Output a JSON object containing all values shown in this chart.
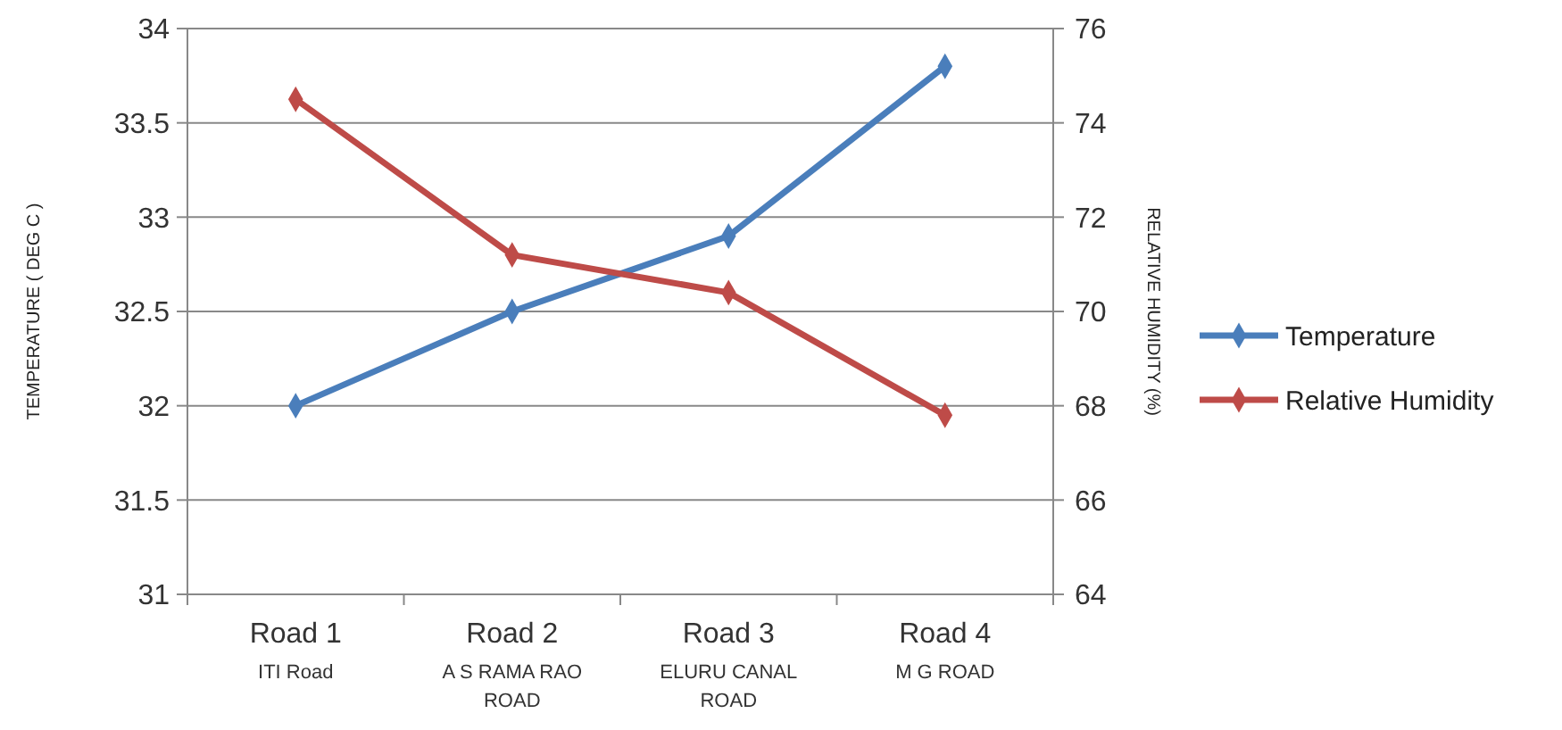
{
  "chart_data": {
    "type": "line",
    "categories": [
      "Road 1\nITI Road",
      "Road 2\nA S RAMA RAO\nROAD",
      "Road 3\nELURU CANAL\nROAD",
      "Road 4\nM G ROAD"
    ],
    "ylabel": "TEMPERATURE ( DEG C )",
    "y2label": "RELATIVE HUMIDITY (%)",
    "ylim": [
      31,
      34
    ],
    "yticks": [
      31,
      31.5,
      32,
      32.5,
      33,
      33.5,
      34
    ],
    "y2lim": [
      64,
      76
    ],
    "y2ticks": [
      64,
      66,
      68,
      70,
      72,
      74,
      76
    ],
    "grid": "y",
    "legend": "right",
    "marker": "diamond",
    "line_style": "solid",
    "series": [
      {
        "name": "Temperature",
        "color": "#4a7ebb",
        "values": [
          32,
          32.5,
          32.9,
          33.8
        ]
      },
      {
        "name": "Relative Humidity",
        "color": "#be4b48",
        "values": [
          74.5,
          71.2,
          70.4,
          67.8
        ],
        "axis": "y2"
      }
    ]
  }
}
